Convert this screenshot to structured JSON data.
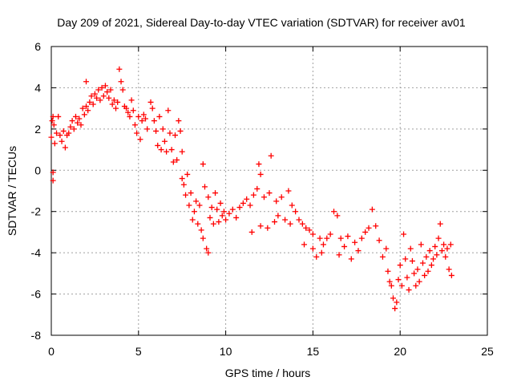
{
  "chart_data": {
    "type": "scatter",
    "title": "Day 209 of 2021, Sidereal Day-to-day VTEC variation (SDTVAR) for receiver av01",
    "xlabel": "GPS time / hours",
    "ylabel": "SDTVAR / TECUs",
    "xlim": [
      0,
      25
    ],
    "ylim": [
      -8,
      6
    ],
    "xticks": [
      0,
      5,
      10,
      15,
      20,
      25
    ],
    "yticks": [
      -8,
      -6,
      -4,
      -2,
      0,
      2,
      4,
      6
    ],
    "xtick_labels": [
      "0",
      "5",
      "10",
      "15",
      "20",
      "25"
    ],
    "ytick_labels": [
      "-8",
      "-6",
      "-4",
      "-2",
      "0",
      "2",
      "4",
      "6"
    ],
    "grid": true,
    "marker": "+",
    "series": [
      {
        "name": "SDTVAR",
        "color": "#ff0000",
        "points": [
          [
            0.0,
            1.6
          ],
          [
            0.05,
            2.4
          ],
          [
            0.1,
            2.6
          ],
          [
            0.1,
            -0.1
          ],
          [
            0.1,
            -0.5
          ],
          [
            0.15,
            2.2
          ],
          [
            0.2,
            1.3
          ],
          [
            0.3,
            1.8
          ],
          [
            0.4,
            2.6
          ],
          [
            0.5,
            1.7
          ],
          [
            0.6,
            1.4
          ],
          [
            0.7,
            1.9
          ],
          [
            0.8,
            1.1
          ],
          [
            0.9,
            1.7
          ],
          [
            1.0,
            1.8
          ],
          [
            1.1,
            2.1
          ],
          [
            1.2,
            2.4
          ],
          [
            1.3,
            2.0
          ],
          [
            1.4,
            2.6
          ],
          [
            1.5,
            2.3
          ],
          [
            1.6,
            2.5
          ],
          [
            1.7,
            2.2
          ],
          [
            1.8,
            3.0
          ],
          [
            1.9,
            2.7
          ],
          [
            2.0,
            3.1
          ],
          [
            2.0,
            4.3
          ],
          [
            2.1,
            2.9
          ],
          [
            2.2,
            3.3
          ],
          [
            2.3,
            3.6
          ],
          [
            2.4,
            3.2
          ],
          [
            2.5,
            3.7
          ],
          [
            2.6,
            3.5
          ],
          [
            2.7,
            3.9
          ],
          [
            2.8,
            3.4
          ],
          [
            2.9,
            4.0
          ],
          [
            3.0,
            3.6
          ],
          [
            3.1,
            4.1
          ],
          [
            3.2,
            3.8
          ],
          [
            3.3,
            3.5
          ],
          [
            3.4,
            3.9
          ],
          [
            3.5,
            3.2
          ],
          [
            3.6,
            3.4
          ],
          [
            3.7,
            3.0
          ],
          [
            3.8,
            3.3
          ],
          [
            3.9,
            4.9
          ],
          [
            4.0,
            4.3
          ],
          [
            4.1,
            3.9
          ],
          [
            4.2,
            3.1
          ],
          [
            4.3,
            3.0
          ],
          [
            4.4,
            2.8
          ],
          [
            4.5,
            2.6
          ],
          [
            4.6,
            3.4
          ],
          [
            4.7,
            2.9
          ],
          [
            4.8,
            2.2
          ],
          [
            4.9,
            1.8
          ],
          [
            5.0,
            2.6
          ],
          [
            5.1,
            1.5
          ],
          [
            5.2,
            2.4
          ],
          [
            5.3,
            2.7
          ],
          [
            5.4,
            2.5
          ],
          [
            5.5,
            2.0
          ],
          [
            5.7,
            3.3
          ],
          [
            5.8,
            3.0
          ],
          [
            5.9,
            2.4
          ],
          [
            6.0,
            1.9
          ],
          [
            6.1,
            1.2
          ],
          [
            6.2,
            2.6
          ],
          [
            6.3,
            1.0
          ],
          [
            6.4,
            2.0
          ],
          [
            6.5,
            1.4
          ],
          [
            6.6,
            0.9
          ],
          [
            6.7,
            2.9
          ],
          [
            6.8,
            1.8
          ],
          [
            6.9,
            1.0
          ],
          [
            7.0,
            0.4
          ],
          [
            7.1,
            1.7
          ],
          [
            7.2,
            0.5
          ],
          [
            7.3,
            2.4
          ],
          [
            7.4,
            1.9
          ],
          [
            7.5,
            0.9
          ],
          [
            7.5,
            -0.4
          ],
          [
            7.6,
            -0.7
          ],
          [
            7.7,
            -1.2
          ],
          [
            7.8,
            -0.2
          ],
          [
            7.9,
            -1.7
          ],
          [
            8.0,
            -1.1
          ],
          [
            8.1,
            -2.4
          ],
          [
            8.2,
            -2.0
          ],
          [
            8.3,
            -1.5
          ],
          [
            8.4,
            -2.6
          ],
          [
            8.5,
            -1.7
          ],
          [
            8.6,
            -2.9
          ],
          [
            8.7,
            -3.3
          ],
          [
            8.7,
            0.3
          ],
          [
            8.8,
            -0.8
          ],
          [
            8.9,
            -3.8
          ],
          [
            9.0,
            -4.0
          ],
          [
            9.0,
            -1.3
          ],
          [
            9.1,
            -2.3
          ],
          [
            9.2,
            -1.8
          ],
          [
            9.3,
            -2.6
          ],
          [
            9.4,
            -1.1
          ],
          [
            9.5,
            -1.9
          ],
          [
            9.6,
            -2.5
          ],
          [
            9.7,
            -1.6
          ],
          [
            9.8,
            -2.2
          ],
          [
            9.9,
            -2.0
          ],
          [
            10.0,
            -2.4
          ],
          [
            10.2,
            -2.1
          ],
          [
            10.4,
            -1.9
          ],
          [
            10.6,
            -2.3
          ],
          [
            10.8,
            -1.8
          ],
          [
            11.0,
            -1.6
          ],
          [
            11.2,
            -1.4
          ],
          [
            11.4,
            -1.7
          ],
          [
            11.5,
            -3.0
          ],
          [
            11.6,
            -1.2
          ],
          [
            11.8,
            -0.9
          ],
          [
            11.9,
            0.3
          ],
          [
            12.0,
            -0.2
          ],
          [
            12.0,
            -2.7
          ],
          [
            12.2,
            -1.3
          ],
          [
            12.4,
            -2.8
          ],
          [
            12.5,
            -1.1
          ],
          [
            12.6,
            0.7
          ],
          [
            12.8,
            -2.5
          ],
          [
            12.9,
            -1.5
          ],
          [
            13.0,
            -2.2
          ],
          [
            13.2,
            -1.3
          ],
          [
            13.4,
            -2.4
          ],
          [
            13.6,
            -1.0
          ],
          [
            13.7,
            -2.6
          ],
          [
            13.8,
            -1.7
          ],
          [
            14.0,
            -2.0
          ],
          [
            14.2,
            -2.4
          ],
          [
            14.4,
            -2.6
          ],
          [
            14.5,
            -3.6
          ],
          [
            14.6,
            -2.8
          ],
          [
            14.8,
            -2.9
          ],
          [
            15.0,
            -3.1
          ],
          [
            15.0,
            -3.8
          ],
          [
            15.2,
            -4.2
          ],
          [
            15.4,
            -3.3
          ],
          [
            15.5,
            -4.0
          ],
          [
            15.6,
            -3.6
          ],
          [
            15.8,
            -3.3
          ],
          [
            16.0,
            -3.1
          ],
          [
            16.2,
            -2.0
          ],
          [
            16.4,
            -2.2
          ],
          [
            16.5,
            -4.1
          ],
          [
            16.6,
            -3.3
          ],
          [
            16.8,
            -3.7
          ],
          [
            17.0,
            -3.2
          ],
          [
            17.2,
            -4.3
          ],
          [
            17.4,
            -3.5
          ],
          [
            17.6,
            -3.9
          ],
          [
            17.8,
            -3.3
          ],
          [
            18.0,
            -3.0
          ],
          [
            18.2,
            -2.8
          ],
          [
            18.4,
            -1.9
          ],
          [
            18.6,
            -2.7
          ],
          [
            18.8,
            -3.4
          ],
          [
            19.0,
            -4.2
          ],
          [
            19.2,
            -3.8
          ],
          [
            19.3,
            -4.9
          ],
          [
            19.4,
            -5.4
          ],
          [
            19.5,
            -5.6
          ],
          [
            19.6,
            -6.2
          ],
          [
            19.7,
            -6.7
          ],
          [
            19.8,
            -6.4
          ],
          [
            19.9,
            -5.3
          ],
          [
            20.0,
            -4.6
          ],
          [
            20.1,
            -5.6
          ],
          [
            20.2,
            -3.1
          ],
          [
            20.3,
            -4.3
          ],
          [
            20.4,
            -5.2
          ],
          [
            20.5,
            -5.8
          ],
          [
            20.6,
            -3.8
          ],
          [
            20.7,
            -4.4
          ],
          [
            20.8,
            -5.0
          ],
          [
            20.9,
            -5.6
          ],
          [
            21.0,
            -4.8
          ],
          [
            21.1,
            -5.4
          ],
          [
            21.2,
            -3.6
          ],
          [
            21.3,
            -4.5
          ],
          [
            21.4,
            -5.1
          ],
          [
            21.5,
            -4.2
          ],
          [
            21.6,
            -4.9
          ],
          [
            21.7,
            -3.9
          ],
          [
            21.8,
            -4.6
          ],
          [
            21.9,
            -4.3
          ],
          [
            22.0,
            -3.7
          ],
          [
            22.1,
            -4.1
          ],
          [
            22.2,
            -3.3
          ],
          [
            22.3,
            -2.6
          ],
          [
            22.4,
            -3.9
          ],
          [
            22.5,
            -3.6
          ],
          [
            22.6,
            -4.2
          ],
          [
            22.7,
            -3.8
          ],
          [
            22.8,
            -4.8
          ],
          [
            22.9,
            -3.6
          ],
          [
            22.95,
            -5.1
          ]
        ]
      }
    ]
  }
}
